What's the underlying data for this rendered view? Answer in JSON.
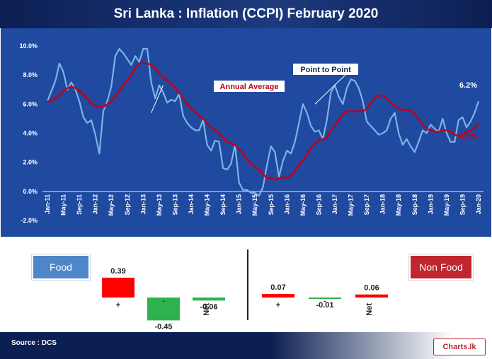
{
  "footer": {
    "source": "Source : DCS",
    "logo": "Charts.lk"
  },
  "colors": {
    "background": "#1f4aa0",
    "point_to_point": "#7fb2e5",
    "annual_average": "#c0001c",
    "bar_positive": "#ff0000",
    "bar_negative": "#2eb24e",
    "food_legend": "#4e86c8",
    "non_food_legend": "#c0262d",
    "title_bar": "#0c1f52"
  },
  "chart_data": [
    {
      "type": "line",
      "title": "Sri Lanka : Inflation  (CCPI) February 2020",
      "x_tick_labels": [
        "Jan-11",
        "May-11",
        "Sep-11",
        "Jan-12",
        "May-12",
        "Sep-12",
        "Jan-13",
        "May-13",
        "Sep-13",
        "Jan-14",
        "May-14",
        "Sep-14",
        "Jan-15",
        "May-15",
        "Sep-15",
        "Jan-16",
        "May-16",
        "Sep-16",
        "Jan-17",
        "May-17",
        "Sep-17",
        "Jan-18",
        "May-18",
        "Sep-18",
        "Jan-19",
        "May-19",
        "Sep-19",
        "Jan-20"
      ],
      "y_tick_labels": [
        "-2.0%",
        "0.0%",
        "2.0%",
        "4.0%",
        "6.0%",
        "8.0%",
        "10.0%"
      ],
      "ylim": [
        -2,
        10
      ],
      "grid": false,
      "x_start": "Jan-11",
      "x_end": "Feb-20",
      "series": [
        {
          "name": "Point to Point",
          "values": [
            6.2,
            6.9,
            7.6,
            8.8,
            8.2,
            7.0,
            7.5,
            7.0,
            6.2,
            5.1,
            4.7,
            4.9,
            3.9,
            2.6,
            5.5,
            6.2,
            7.2,
            9.3,
            9.8,
            9.5,
            9.1,
            8.7,
            9.3,
            8.9,
            9.8,
            9.8,
            7.5,
            6.4,
            7.3,
            6.8,
            6.1,
            6.3,
            6.2,
            6.7,
            5.2,
            4.7,
            4.4,
            4.2,
            4.2,
            4.9,
            3.2,
            2.8,
            3.5,
            3.4,
            1.6,
            1.5,
            1.9,
            3.2,
            0.6,
            0.1,
            0.1,
            -0.1,
            -0.1,
            -0.3,
            0.3,
            1.8,
            3.1,
            2.7,
            1.0,
            2.1,
            2.8,
            2.6,
            3.4,
            4.7,
            6.0,
            5.4,
            4.5,
            4.1,
            4.2,
            3.6,
            4.9,
            6.8,
            7.3,
            6.5,
            6.0,
            7.1,
            7.7,
            7.6,
            7.1,
            6.2,
            4.8,
            4.5,
            4.2,
            3.9,
            4.0,
            4.2,
            5.0,
            5.4,
            4.0,
            3.2,
            3.6,
            3.1,
            2.7,
            3.4,
            4.2,
            4.0,
            4.6,
            4.3,
            4.1,
            5.0,
            4.0,
            3.4,
            3.4,
            4.9,
            5.1,
            4.4,
            4.8,
            5.4,
            6.2
          ],
          "label": "Point to Point",
          "end_label": "6.2%"
        },
        {
          "name": "Annual Average",
          "values": [
            6.2,
            6.2,
            6.4,
            6.6,
            6.9,
            7.1,
            7.2,
            7.1,
            6.9,
            6.7,
            6.4,
            6.0,
            5.9,
            5.8,
            5.8,
            6.0,
            6.2,
            6.5,
            6.9,
            7.3,
            7.6,
            8.0,
            8.5,
            8.8,
            8.8,
            8.8,
            8.7,
            8.5,
            8.1,
            7.9,
            7.6,
            7.4,
            7.1,
            6.8,
            6.4,
            6.0,
            5.7,
            5.5,
            5.2,
            5.0,
            4.7,
            4.4,
            4.2,
            4.0,
            3.7,
            3.4,
            3.3,
            3.2,
            2.9,
            2.6,
            2.2,
            1.9,
            1.7,
            1.5,
            1.2,
            0.9,
            0.9,
            0.8,
            0.9,
            1.0,
            0.9,
            1.1,
            1.4,
            1.8,
            2.1,
            2.5,
            3.0,
            3.3,
            3.5,
            3.6,
            3.7,
            4.2,
            4.5,
            4.9,
            5.3,
            5.5,
            5.5,
            5.5,
            5.5,
            5.5,
            5.7,
            6.1,
            6.4,
            6.6,
            6.6,
            6.4,
            6.1,
            5.9,
            5.7,
            5.6,
            5.6,
            5.6,
            5.3,
            5.0,
            4.6,
            4.3,
            4.2,
            4.1,
            4.1,
            4.2,
            4.2,
            4.1,
            3.9,
            3.8,
            3.9,
            4.1,
            4.2,
            4.4,
            4.6
          ],
          "label": "Annual Average",
          "end_label": "4.6%"
        }
      ]
    },
    {
      "type": "bar",
      "group_label": "Food",
      "categories": [
        "+",
        "-",
        "Net"
      ],
      "values": [
        0.39,
        -0.45,
        -0.06
      ],
      "value_labels": [
        "0.39",
        "-0.45",
        "-0.06"
      ]
    },
    {
      "type": "bar",
      "group_label": "Non Food",
      "categories": [
        "+",
        "-",
        "Net"
      ],
      "values": [
        0.07,
        -0.01,
        0.06
      ],
      "value_labels": [
        "0.07",
        "-0.01",
        "0.06"
      ]
    }
  ]
}
